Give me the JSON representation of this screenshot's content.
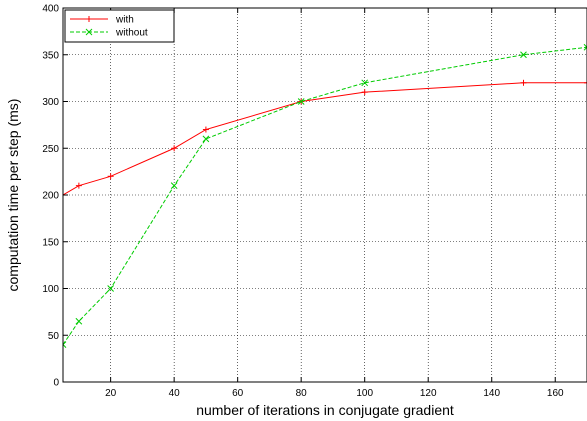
{
  "chart_data": {
    "type": "line",
    "xlabel": "number of iterations in conjugate gradient",
    "ylabel": "computation time per step (ms)",
    "xlim": [
      5,
      170
    ],
    "ylim": [
      0,
      400
    ],
    "xticks": [
      20,
      40,
      60,
      80,
      100,
      120,
      140,
      160
    ],
    "yticks": [
      0,
      50,
      100,
      150,
      200,
      250,
      300,
      350,
      400
    ],
    "grid": true,
    "legend_position": "top-left",
    "series": [
      {
        "name": "with",
        "color": "#ff0000",
        "marker": "plus",
        "dash": "solid",
        "x": [
          5,
          10,
          20,
          40,
          50,
          80,
          100,
          150,
          170
        ],
        "y": [
          200,
          210,
          220,
          250,
          270,
          300,
          310,
          320,
          320
        ]
      },
      {
        "name": "without",
        "color": "#00cc00",
        "marker": "cross",
        "dash": "dashed",
        "x": [
          5,
          10,
          20,
          40,
          50,
          80,
          100,
          150,
          170
        ],
        "y": [
          40,
          65,
          100,
          210,
          260,
          300,
          320,
          350,
          358
        ]
      }
    ]
  }
}
